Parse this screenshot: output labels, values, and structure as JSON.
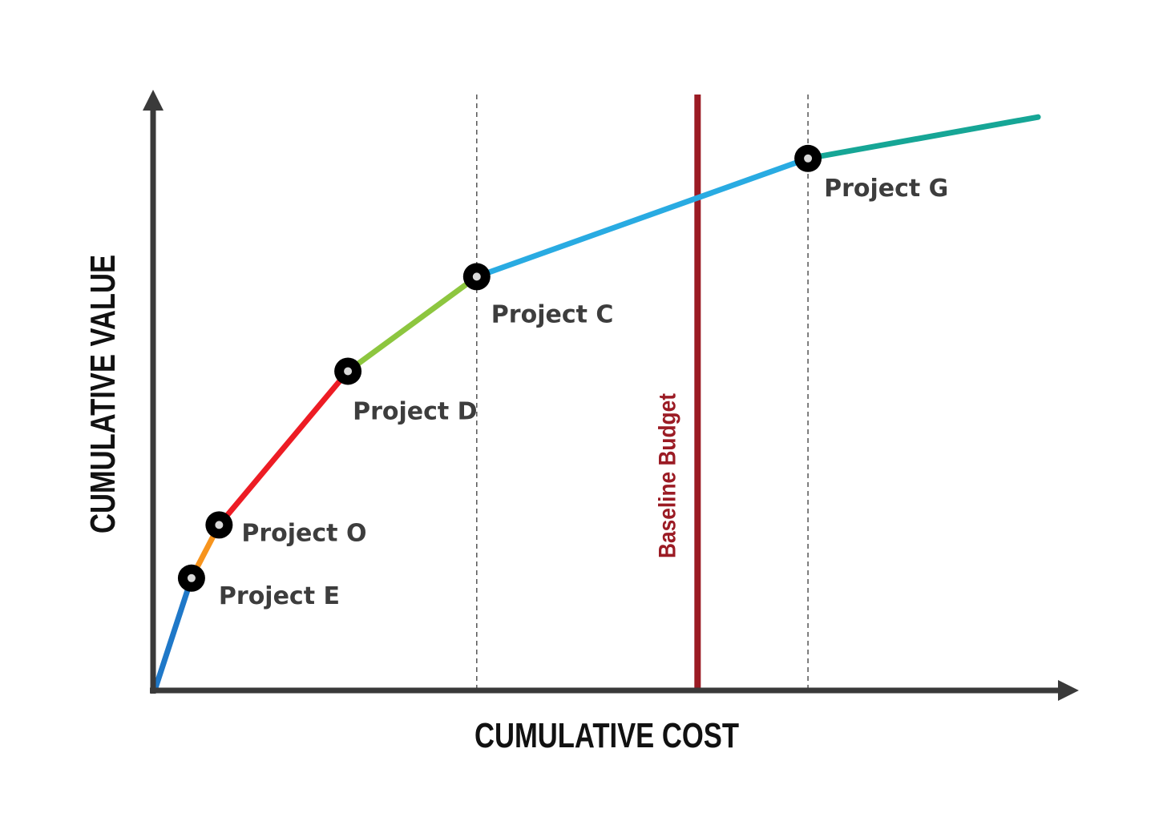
{
  "chart_data": {
    "type": "line",
    "xlabel": "CUMULATIVE COST",
    "ylabel": "CUMULATIVE VALUE",
    "grid": false,
    "legend": "none",
    "points": [
      {
        "label": "",
        "x": 0,
        "y": 0
      },
      {
        "label": "Project E",
        "x": 4,
        "y": 19
      },
      {
        "label": "Project O",
        "x": 7,
        "y": 28
      },
      {
        "label": "Project D",
        "x": 21,
        "y": 54
      },
      {
        "label": "Project C",
        "x": 35,
        "y": 70
      },
      {
        "label": "Project G",
        "x": 71,
        "y": 90
      },
      {
        "label": "",
        "x": 96,
        "y": 97
      }
    ],
    "segment_colors": [
      "#1f78c8",
      "#f7941d",
      "#ed1c24",
      "#8dc63f",
      "#29abe2",
      "#16a696"
    ],
    "reference_lines": [
      {
        "label": "Baseline Budget",
        "x": 59,
        "color": "#9b1b24"
      }
    ],
    "dashed_guides_x": [
      35,
      71
    ]
  }
}
